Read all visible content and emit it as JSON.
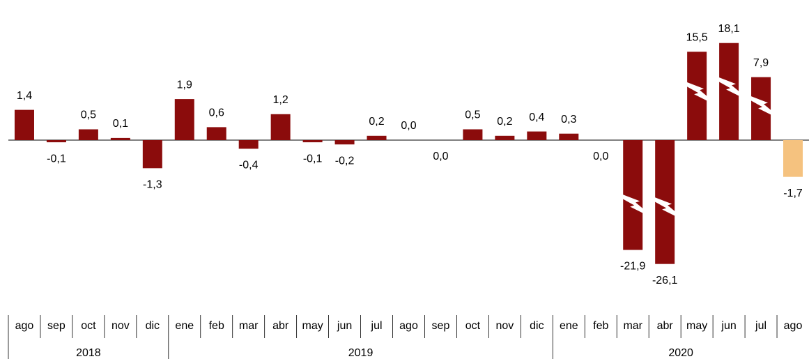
{
  "chart_data": {
    "type": "bar",
    "categories": [
      "ago",
      "sep",
      "oct",
      "nov",
      "dic",
      "ene",
      "feb",
      "mar",
      "abr",
      "may",
      "jun",
      "jul",
      "ago",
      "sep",
      "oct",
      "nov",
      "dic",
      "ene",
      "feb",
      "mar",
      "abr",
      "may",
      "jun",
      "jul",
      "ago"
    ],
    "years": [
      "2018",
      "2019",
      "2020"
    ],
    "values": [
      1.4,
      -0.1,
      0.5,
      0.1,
      -1.3,
      1.9,
      0.6,
      -0.4,
      1.2,
      -0.1,
      -0.2,
      0.2,
      0.0,
      0,
      0.5,
      0.2,
      0.4,
      0.3,
      0,
      -21.9,
      -26.1,
      15.5,
      18.1,
      7.9,
      -1.7
    ],
    "value_labels": [
      "1,4",
      "-0,1",
      "0,5",
      "0,1",
      "-1,3",
      "1,9",
      "0,6",
      "-0,4",
      "1,2",
      "-0,1",
      "-0,2",
      "0,2",
      "0,0",
      "0,0",
      "0,5",
      "0,2",
      "0,4",
      "0,3",
      "0,0",
      "-21,9",
      "-26,1",
      "15,5",
      "18,1",
      "7,9",
      "-1,7"
    ],
    "colors": [
      "#8b0c0c",
      "#8b0c0c",
      "#8b0c0c",
      "#8b0c0c",
      "#8b0c0c",
      "#8b0c0c",
      "#8b0c0c",
      "#8b0c0c",
      "#8b0c0c",
      "#8b0c0c",
      "#8b0c0c",
      "#8b0c0c",
      "#8b0c0c",
      "#8b0c0c",
      "#8b0c0c",
      "#8b0c0c",
      "#8b0c0c",
      "#8b0c0c",
      "#8b0c0c",
      "#8b0c0c",
      "#8b0c0c",
      "#8b0c0c",
      "#8b0c0c",
      "#8b0c0c",
      "#f5c27f"
    ]
  }
}
